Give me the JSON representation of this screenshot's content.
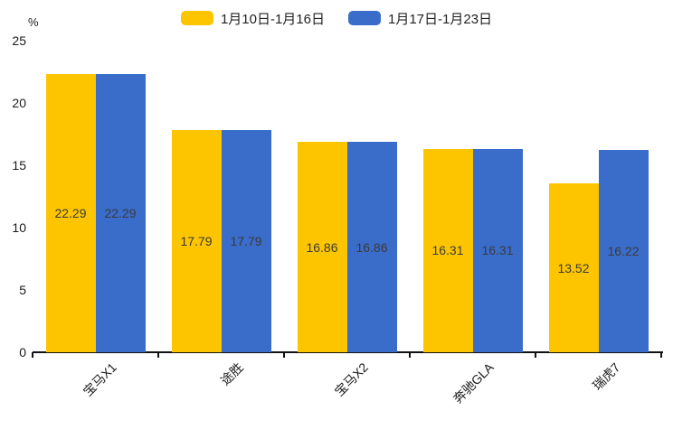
{
  "chart_data": {
    "type": "bar",
    "title": "",
    "ylabel": "%",
    "xlabel": "",
    "ylim": [
      0,
      25
    ],
    "yticks": [
      0,
      5,
      10,
      15,
      20,
      25
    ],
    "grid": false,
    "legend_position": "top",
    "categories": [
      "宝马X1",
      "途胜",
      "宝马X2",
      "奔驰GLA",
      "瑞虎7"
    ],
    "series": [
      {
        "name": "1月10日-1月16日",
        "color": "#FDC500",
        "values": [
          22.29,
          17.79,
          16.86,
          16.31,
          13.52
        ]
      },
      {
        "name": "1月17日-1月23日",
        "color": "#3A6CCA",
        "values": [
          22.29,
          17.79,
          16.86,
          16.31,
          16.22
        ]
      }
    ],
    "value_label_color": "#3b3b3b",
    "axis_color": "#111111"
  }
}
